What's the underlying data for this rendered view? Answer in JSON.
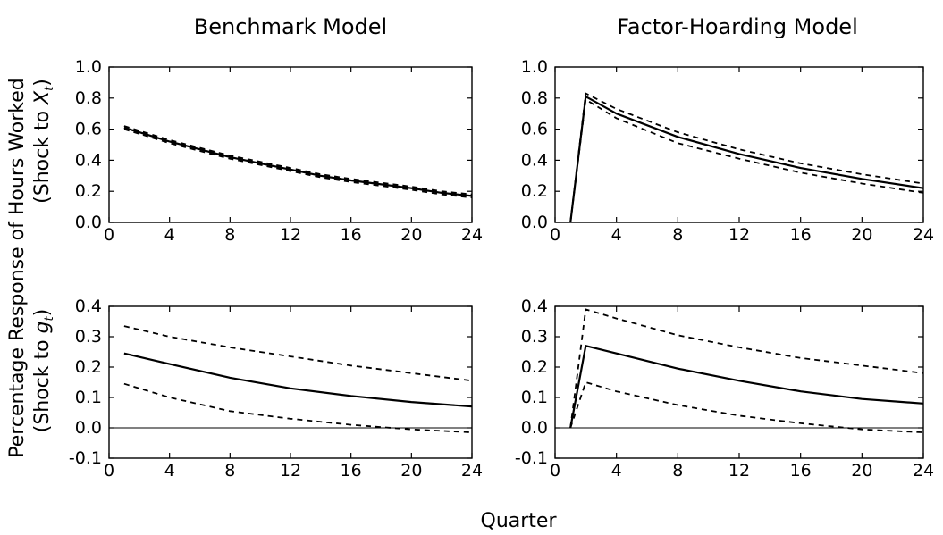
{
  "figure": {
    "column_titles": [
      "Benchmark Model",
      "Factor-Hoarding Model"
    ],
    "y_title": "Percentage Response of Hours Worked",
    "x_title": "Quarter",
    "row_labels": [
      {
        "prefix": "(Shock to ",
        "symbol": "X",
        "sub": "t",
        "suffix": ")"
      },
      {
        "prefix": "(Shock to ",
        "symbol": "g",
        "sub": "t",
        "suffix": ")"
      }
    ]
  },
  "chart_data": [
    {
      "type": "line",
      "title": "Benchmark Model",
      "xlabel": "Quarter",
      "ylabel": "(Shock to Xt)",
      "xlim": [
        0,
        24
      ],
      "ylim": [
        0.0,
        1.0
      ],
      "xticks": [
        "0",
        "4",
        "8",
        "12",
        "16",
        "20",
        "24"
      ],
      "yticks": [
        "0.0",
        "0.2",
        "0.4",
        "0.6",
        "0.8",
        "1.0"
      ],
      "x": [
        1,
        2,
        3,
        4,
        6,
        8,
        10,
        12,
        14,
        16,
        18,
        20,
        22,
        24
      ],
      "series": [
        {
          "style": "solid",
          "values": [
            0.61,
            0.58,
            0.55,
            0.52,
            0.47,
            0.42,
            0.38,
            0.34,
            0.3,
            0.27,
            0.245,
            0.22,
            0.19,
            0.17
          ]
        },
        {
          "style": "dashed",
          "values": [
            0.62,
            0.59,
            0.56,
            0.53,
            0.48,
            0.43,
            0.39,
            0.35,
            0.31,
            0.28,
            0.255,
            0.23,
            0.2,
            0.18
          ]
        },
        {
          "style": "dashed",
          "values": [
            0.6,
            0.57,
            0.54,
            0.51,
            0.46,
            0.41,
            0.37,
            0.33,
            0.29,
            0.26,
            0.235,
            0.21,
            0.18,
            0.16
          ]
        }
      ]
    },
    {
      "type": "line",
      "title": "Factor-Hoarding Model",
      "xlabel": "Quarter",
      "ylabel": "(Shock to Xt)",
      "xlim": [
        0,
        24
      ],
      "ylim": [
        0.0,
        1.0
      ],
      "xticks": [
        "0",
        "4",
        "8",
        "12",
        "16",
        "20",
        "24"
      ],
      "yticks": [
        "0.0",
        "0.2",
        "0.4",
        "0.6",
        "0.8",
        "1.0"
      ],
      "x": [
        1,
        2,
        4,
        8,
        12,
        16,
        20,
        24
      ],
      "series": [
        {
          "style": "solid",
          "values": [
            0.0,
            0.81,
            0.7,
            0.55,
            0.44,
            0.35,
            0.28,
            0.22
          ]
        },
        {
          "style": "dashed",
          "values": [
            0.0,
            0.83,
            0.73,
            0.58,
            0.47,
            0.38,
            0.31,
            0.25
          ]
        },
        {
          "style": "dashed",
          "values": [
            0.0,
            0.79,
            0.67,
            0.51,
            0.41,
            0.32,
            0.25,
            0.19
          ]
        }
      ]
    },
    {
      "type": "line",
      "title": "Benchmark Model",
      "xlabel": "Quarter",
      "ylabel": "(Shock to gt)",
      "xlim": [
        0,
        24
      ],
      "ylim": [
        -0.1,
        0.4
      ],
      "xticks": [
        "0",
        "4",
        "8",
        "12",
        "16",
        "20",
        "24"
      ],
      "yticks": [
        "-0.1",
        "0.0",
        "0.1",
        "0.2",
        "0.3",
        "0.4"
      ],
      "zero_line": true,
      "x": [
        1,
        4,
        8,
        12,
        16,
        20,
        24
      ],
      "series": [
        {
          "style": "solid",
          "values": [
            0.245,
            0.21,
            0.165,
            0.13,
            0.105,
            0.085,
            0.07
          ]
        },
        {
          "style": "dashed",
          "values": [
            0.335,
            0.3,
            0.265,
            0.235,
            0.205,
            0.18,
            0.155
          ]
        },
        {
          "style": "dashed",
          "values": [
            0.145,
            0.1,
            0.055,
            0.03,
            0.01,
            -0.005,
            -0.015
          ]
        }
      ]
    },
    {
      "type": "line",
      "title": "Factor-Hoarding Model",
      "xlabel": "Quarter",
      "ylabel": "(Shock to gt)",
      "xlim": [
        0,
        24
      ],
      "ylim": [
        -0.1,
        0.4
      ],
      "xticks": [
        "0",
        "4",
        "8",
        "12",
        "16",
        "20",
        "24"
      ],
      "yticks": [
        "-0.1",
        "0.0",
        "0.1",
        "0.2",
        "0.3",
        "0.4"
      ],
      "zero_line": true,
      "x": [
        1,
        2,
        4,
        8,
        12,
        16,
        20,
        24
      ],
      "series": [
        {
          "style": "solid",
          "values": [
            0.0,
            0.27,
            0.245,
            0.195,
            0.155,
            0.12,
            0.095,
            0.08
          ]
        },
        {
          "style": "dashed",
          "values": [
            0.0,
            0.39,
            0.36,
            0.305,
            0.265,
            0.23,
            0.205,
            0.18
          ]
        },
        {
          "style": "dashed",
          "values": [
            0.0,
            0.15,
            0.12,
            0.075,
            0.04,
            0.015,
            -0.005,
            -0.015
          ]
        }
      ]
    }
  ]
}
